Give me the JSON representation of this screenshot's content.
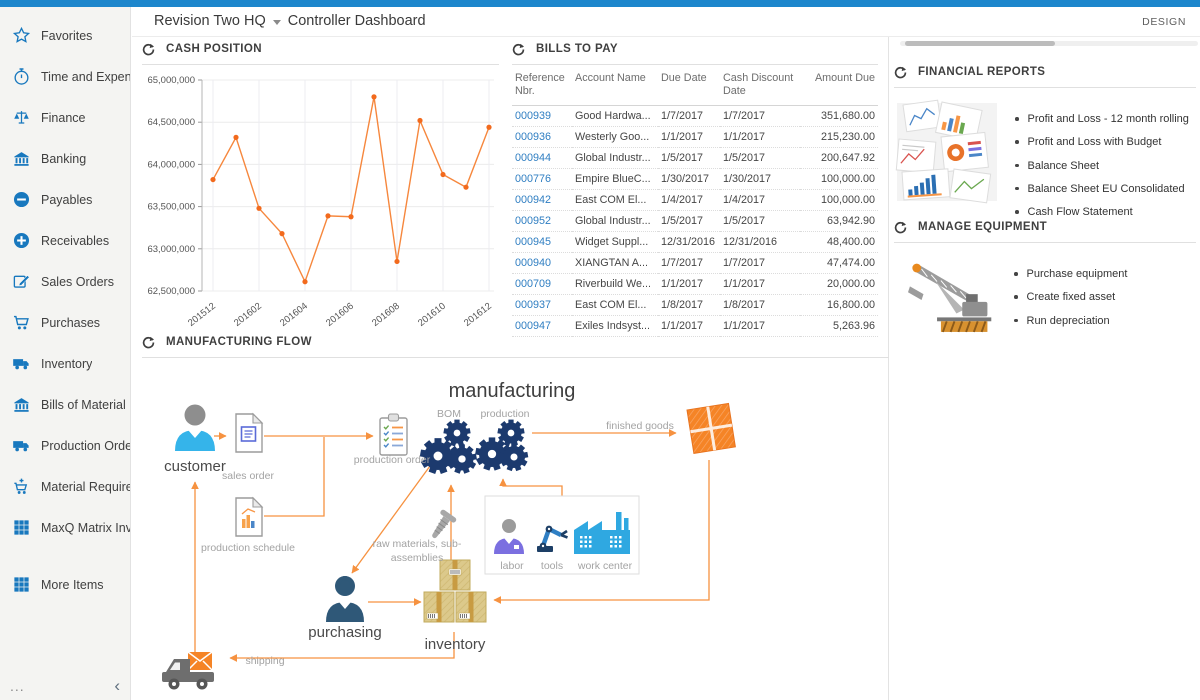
{
  "header": {
    "company": "Revision Two HQ",
    "page_title": "Controller Dashboard",
    "design_label": "DESIGN"
  },
  "sidebar": {
    "items": [
      {
        "icon": "star",
        "label": "Favorites"
      },
      {
        "icon": "stopwatch",
        "label": "Time and Expenses"
      },
      {
        "icon": "scales",
        "label": "Finance"
      },
      {
        "icon": "bank",
        "label": "Banking"
      },
      {
        "icon": "minus-circle",
        "label": "Payables"
      },
      {
        "icon": "plus-circle",
        "label": "Receivables"
      },
      {
        "icon": "edit",
        "label": "Sales Orders"
      },
      {
        "icon": "cart",
        "label": "Purchases"
      },
      {
        "icon": "truck",
        "label": "Inventory"
      },
      {
        "icon": "bank",
        "label": "Bills of Material"
      },
      {
        "icon": "truck",
        "label": "Production Orders"
      },
      {
        "icon": "cart-plus",
        "label": "Material Requirem..."
      },
      {
        "icon": "grid",
        "label": "MaxQ Matrix Invent..."
      },
      {
        "icon": "grid",
        "label": "More Items",
        "gap": true
      }
    ],
    "footer": {
      "more_icon": "...",
      "collapse_icon": "‹"
    }
  },
  "panels": {
    "cash_position": {
      "title": "CASH POSITION"
    },
    "bills_to_pay": {
      "title": "BILLS TO PAY",
      "columns": [
        "Reference Nbr.",
        "Account Name",
        "Due Date",
        "Cash Discount Date",
        "Amount Due"
      ],
      "rows": [
        [
          "000939",
          "Good Hardwa...",
          "1/7/2017",
          "1/7/2017",
          "351,680.00"
        ],
        [
          "000936",
          "Westerly Goo...",
          "1/1/2017",
          "1/1/2017",
          "215,230.00"
        ],
        [
          "000944",
          "Global Industr...",
          "1/5/2017",
          "1/5/2017",
          "200,647.92"
        ],
        [
          "000776",
          "Empire BlueC...",
          "1/30/2017",
          "1/30/2017",
          "100,000.00"
        ],
        [
          "000942",
          "East COM El...",
          "1/4/2017",
          "1/4/2017",
          "100,000.00"
        ],
        [
          "000952",
          "Global Industr...",
          "1/5/2017",
          "1/5/2017",
          "63,942.90"
        ],
        [
          "000945",
          "Widget Suppl...",
          "12/31/2016",
          "12/31/2016",
          "48,400.00"
        ],
        [
          "000940",
          "XIANGTAN A...",
          "1/7/2017",
          "1/7/2017",
          "47,474.00"
        ],
        [
          "000709",
          "Riverbuild We...",
          "1/1/2017",
          "1/1/2017",
          "20,000.00"
        ],
        [
          "000937",
          "East COM El...",
          "1/8/2017",
          "1/8/2017",
          "16,800.00"
        ],
        [
          "000947",
          "Exiles Indsyst...",
          "1/1/2017",
          "1/1/2017",
          "5,263.96"
        ]
      ]
    },
    "financial_reports": {
      "title": "FINANCIAL REPORTS",
      "links": [
        "Profit and Loss - 12 month rolling",
        "Profit and Loss with Budget",
        "Balance Sheet",
        "Balance Sheet EU Consolidated",
        "Cash Flow Statement"
      ]
    },
    "manage_equipment": {
      "title": "MANAGE EQUIPMENT",
      "links": [
        "Purchase equipment",
        "Create fixed asset",
        "Run depreciation"
      ]
    },
    "manufacturing_flow": {
      "title": "MANUFACTURING FLOW",
      "labels": {
        "diagram_title": "manufacturing",
        "bom": "BOM",
        "production": "production",
        "customer": "customer",
        "sales_order": "sales order",
        "production_order": "production order",
        "production_schedule": "production schedule",
        "finished_goods": "finished goods",
        "raw_materials": "raw materials, sub-assemblies",
        "purchasing": "purchasing",
        "inventory": "inventory",
        "labor": "labor",
        "tools": "tools",
        "work_center": "work center",
        "shipping": "shipping"
      }
    }
  },
  "chart_data": {
    "type": "line",
    "title": "Cash Position",
    "x": [
      "201512",
      "201601",
      "201602",
      "201603",
      "201604",
      "201605",
      "201606",
      "201607",
      "201608",
      "201609",
      "201610",
      "201611",
      "201612"
    ],
    "values": [
      63820000,
      64320000,
      63480000,
      63180000,
      62610000,
      63390000,
      63380000,
      64800000,
      62850000,
      64520000,
      63880000,
      63730000,
      64440000
    ],
    "x_ticks_shown": [
      "201512",
      "201602",
      "201604",
      "201606",
      "201608",
      "201610",
      "201612"
    ],
    "ylim": [
      62500000,
      65000000
    ],
    "y_tick_step": 500000,
    "grid": true,
    "legend": "none",
    "line_color": "#f6873d",
    "marker_color": "#f26a1d"
  }
}
